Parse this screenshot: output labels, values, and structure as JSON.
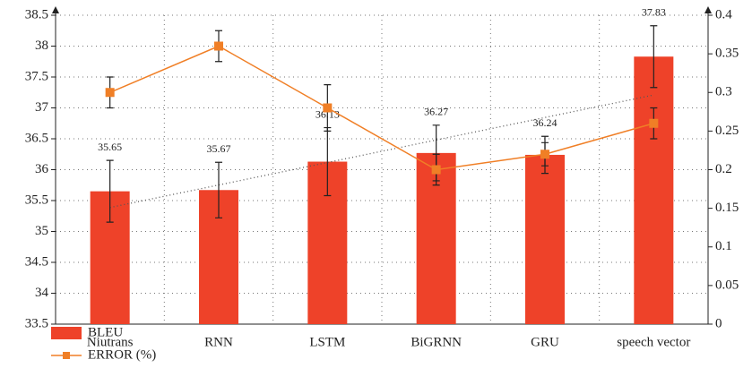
{
  "chart_data": {
    "type": "bar_line",
    "categories": [
      "Niutrans",
      "RNN",
      "LSTM",
      "BiGRNN",
      "GRU",
      "speech vector"
    ],
    "series": [
      {
        "name": "BLEU",
        "type": "bar",
        "color": "#ee4229",
        "values": [
          35.65,
          35.67,
          36.13,
          36.27,
          36.24,
          37.83
        ],
        "errors": [
          0.5,
          0.45,
          0.55,
          0.45,
          0.3,
          0.5
        ],
        "value_labels_shown": true
      },
      {
        "name": "ERROR (%)",
        "type": "line",
        "axis": "y2",
        "color": "#f07f26",
        "values": [
          0.3,
          0.36,
          0.28,
          0.2,
          0.22,
          0.26
        ],
        "errors": [
          0.02,
          0.02,
          0.03,
          0.02,
          0.015,
          0.02
        ]
      }
    ],
    "ylim": [
      33.5,
      38.5
    ],
    "yticks": [
      33.5,
      34,
      34.5,
      35,
      35.5,
      36,
      36.5,
      37,
      37.5,
      38,
      38.5
    ],
    "y2lim": [
      0,
      0.4
    ],
    "y2ticks": [
      0,
      0.05,
      0.1,
      0.15,
      0.2,
      0.25,
      0.3,
      0.35,
      0.4
    ],
    "grid": true,
    "trendline": true,
    "legend": "bottom-left"
  }
}
